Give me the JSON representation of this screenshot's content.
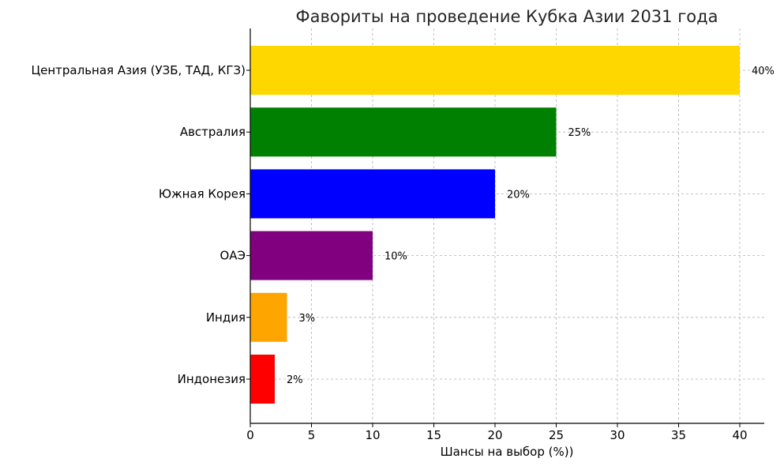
{
  "chart_data": {
    "type": "bar",
    "orientation": "horizontal",
    "title": "Фавориты на проведение Кубка Азии 2031 года",
    "xlabel": "Шансы на выбор (%))",
    "ylabel": "",
    "xlim": [
      0,
      42
    ],
    "xticks": [
      0,
      5,
      10,
      15,
      20,
      25,
      30,
      35,
      40
    ],
    "grid": true,
    "categories": [
      "Центральная Азия (УЗБ, ТАД, КГЗ)",
      "Австралия",
      "Южная Корея",
      "ОАЭ",
      "Индия",
      "Индонезия"
    ],
    "values": [
      40,
      25,
      20,
      10,
      3,
      2
    ],
    "data_labels": [
      "40%",
      "25%",
      "20%",
      "10%",
      "3%",
      "2%"
    ],
    "colors": [
      "#ffd700",
      "#008000",
      "#0000ff",
      "#800080",
      "#ffa500",
      "#ff0000"
    ]
  }
}
